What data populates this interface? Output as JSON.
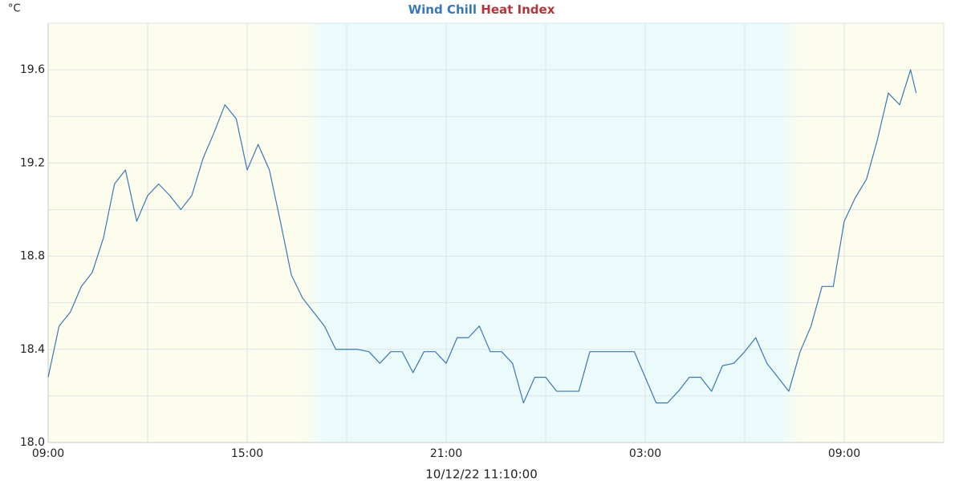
{
  "chart_data": {
    "type": "line",
    "y_label": "°C",
    "x_label": "10/12/22 11:10:00",
    "x": [
      0,
      0.33,
      0.67,
      1,
      1.33,
      1.67,
      2,
      2.33,
      2.67,
      3,
      3.33,
      3.67,
      4,
      4.33,
      4.67,
      5,
      5.33,
      5.67,
      6,
      6.33,
      6.67,
      7,
      7.33,
      7.67,
      8,
      8.33,
      8.67,
      9,
      9.33,
      9.67,
      10,
      10.33,
      10.67,
      11,
      11.33,
      11.67,
      12,
      12.33,
      12.67,
      13,
      13.33,
      13.67,
      14,
      14.33,
      14.67,
      15,
      15.33,
      15.67,
      16,
      16.33,
      16.67,
      17,
      17.33,
      17.67,
      18,
      18.33,
      18.67,
      19,
      19.33,
      19.67,
      20,
      20.33,
      20.67,
      21,
      21.33,
      21.67,
      22,
      22.33,
      22.67,
      23,
      23.33,
      23.67,
      24,
      24.33,
      24.67,
      25,
      25.33,
      25.67,
      26,
      26.17
    ],
    "series": [
      {
        "name": "Wind Chill",
        "color": "#3a78b5",
        "values": [
          18.28,
          18.5,
          18.56,
          18.67,
          18.73,
          18.88,
          19.11,
          19.17,
          18.95,
          19.06,
          19.11,
          19.06,
          19.0,
          19.06,
          19.22,
          19.33,
          19.45,
          19.39,
          19.17,
          19.28,
          19.17,
          18.95,
          18.72,
          18.62,
          18.56,
          18.5,
          18.4,
          18.4,
          18.4,
          18.39,
          18.34,
          18.39,
          18.39,
          18.3,
          18.39,
          18.39,
          18.34,
          18.45,
          18.45,
          18.5,
          18.39,
          18.39,
          18.34,
          18.17,
          18.28,
          18.28,
          18.22,
          18.22,
          18.22,
          18.39,
          18.39,
          18.39,
          18.39,
          18.39,
          18.28,
          18.17,
          18.17,
          18.22,
          18.28,
          18.28,
          18.22,
          18.33,
          18.34,
          18.39,
          18.45,
          18.34,
          18.28,
          18.22,
          18.39,
          18.5,
          18.67,
          18.67,
          18.95,
          19.05,
          19.13,
          19.3,
          19.5,
          19.45,
          19.6,
          19.5
        ]
      },
      {
        "name": "Heat Index",
        "color": "#b3363b",
        "values": [
          null,
          null,
          null,
          null,
          null,
          null,
          null,
          null,
          null,
          null,
          null,
          null,
          null,
          null,
          null,
          null,
          null,
          null,
          null,
          null,
          null,
          null,
          null,
          null,
          null,
          null,
          null,
          null,
          null,
          null,
          null,
          null,
          null,
          null,
          null,
          null,
          null,
          null,
          null,
          null,
          null,
          null,
          null,
          null,
          null,
          null,
          null,
          null,
          null,
          null,
          null,
          null,
          null,
          null,
          null,
          null,
          null,
          null,
          null,
          null,
          null,
          null,
          null,
          null,
          null,
          null,
          null,
          null,
          null,
          null,
          null,
          null,
          null,
          null,
          null,
          null,
          null,
          null,
          null,
          null
        ]
      }
    ],
    "xlim": [
      0,
      27
    ],
    "xticks": [
      {
        "value": 0,
        "label": "09:00"
      },
      {
        "value": 6,
        "label": "15:00"
      },
      {
        "value": 12,
        "label": "21:00"
      },
      {
        "value": 18,
        "label": "03:00"
      },
      {
        "value": 24,
        "label": "09:00"
      }
    ],
    "minor_xticks": [
      3,
      9,
      15,
      21,
      27
    ],
    "ylim": [
      18,
      19.8
    ],
    "yticks": [
      {
        "value": 18,
        "label": "18.0"
      },
      18.4,
      18.8,
      19.2,
      19.6
    ],
    "minor_yticks": [
      18.2,
      18.6,
      19.0,
      19.4,
      19.8
    ],
    "grid": true,
    "shading": [
      {
        "start": 0,
        "end": 7.7,
        "color": "#fdfdee"
      },
      {
        "start": 8.3,
        "end": 22.1,
        "color": "#ebfbfb"
      },
      {
        "start": 22.7,
        "end": 27,
        "color": "#fdfdee"
      }
    ]
  }
}
